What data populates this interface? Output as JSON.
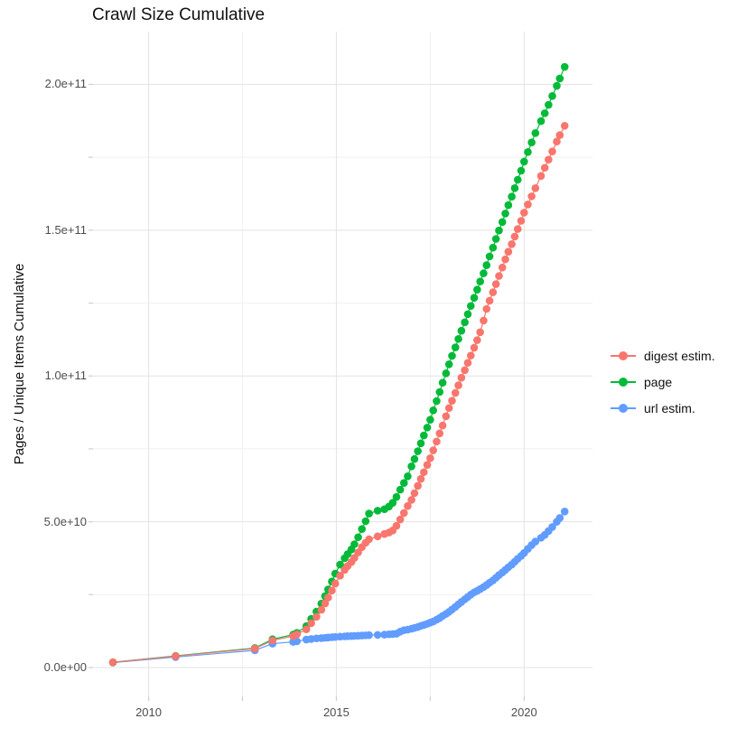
{
  "chart_data": {
    "type": "scatter",
    "title": "Crawl Size Cumulative",
    "ylabel": "Pages / Unique Items Cumulative",
    "xlabel": "",
    "unit": "pages / unique items (values given in billions, 1e9)",
    "xlim": [
      2008.52,
      2021.82
    ],
    "ylim_billions": [
      -9.9,
      218.1
    ],
    "x_ticks": {
      "major": [
        2010,
        2015,
        2020
      ],
      "minor": [
        2012.5,
        2017.5
      ],
      "labels": [
        "2010",
        "2015",
        "2020"
      ]
    },
    "y_ticks": {
      "major_billions": [
        0,
        50,
        100,
        150,
        200
      ],
      "minor_billions": [
        25,
        75,
        125,
        175
      ],
      "labels": [
        "0.0e+00",
        "5.0e+10",
        "1.0e+11",
        "1.5e+11",
        "2.0e+11"
      ]
    },
    "grid": {
      "major_color": "#e3e3e3",
      "minor_color": "#f1f1f1",
      "tick_color": "#cfcfcf"
    },
    "legend_position": "right",
    "x": [
      2009.05,
      2010.72,
      2012.83,
      2013.3,
      2013.85,
      2013.95,
      2014.2,
      2014.33,
      2014.47,
      2014.6,
      2014.7,
      2014.78,
      2014.88,
      2014.97,
      2015.1,
      2015.22,
      2015.3,
      2015.4,
      2015.48,
      2015.58,
      2015.68,
      2015.78,
      2015.87,
      2016.1,
      2016.28,
      2016.4,
      2016.5,
      2016.6,
      2016.7,
      2016.8,
      2016.9,
      2017.0,
      2017.08,
      2017.17,
      2017.25,
      2017.33,
      2017.42,
      2017.5,
      2017.58,
      2017.67,
      2017.75,
      2017.83,
      2017.92,
      2018.0,
      2018.08,
      2018.17,
      2018.25,
      2018.33,
      2018.42,
      2018.5,
      2018.58,
      2018.67,
      2018.75,
      2018.83,
      2018.92,
      2019.0,
      2019.08,
      2019.17,
      2019.25,
      2019.33,
      2019.42,
      2019.5,
      2019.58,
      2019.67,
      2019.75,
      2019.83,
      2019.92,
      2020.0,
      2020.1,
      2020.2,
      2020.3,
      2020.45,
      2020.55,
      2020.65,
      2020.75,
      2020.87,
      2020.95,
      2021.08
    ],
    "series": [
      {
        "name": "digest estim.",
        "color": "#F8766D",
        "values_billions": [
          1.8,
          3.9,
          6.5,
          9.3,
          10.8,
          11.4,
          13.1,
          15.2,
          17.4,
          19.8,
          22.0,
          24.0,
          26.4,
          28.8,
          31.5,
          33.5,
          34.8,
          36.2,
          37.6,
          39.5,
          41.3,
          42.8,
          44.0,
          45.0,
          45.8,
          46.3,
          47.0,
          48.6,
          50.8,
          53.0,
          55.4,
          57.5,
          59.8,
          62.3,
          64.7,
          67.0,
          69.5,
          71.8,
          74.5,
          77.5,
          80.3,
          83.0,
          86.2,
          89.0,
          91.5,
          94.2,
          96.8,
          99.4,
          102.0,
          104.5,
          107.0,
          109.7,
          112.3,
          115.0,
          119.0,
          123.0,
          125.8,
          128.7,
          131.5,
          134.3,
          137.2,
          140.0,
          142.6,
          145.2,
          147.8,
          150.4,
          153.2,
          156.0,
          158.8,
          161.6,
          164.4,
          168.6,
          171.4,
          174.2,
          177.0,
          180.4,
          182.6,
          185.8
        ]
      },
      {
        "name": "page",
        "color": "#00BA38",
        "values_billions": [
          1.8,
          4.0,
          6.7,
          9.7,
          11.3,
          11.9,
          14.2,
          16.7,
          19.2,
          21.9,
          24.5,
          26.8,
          29.5,
          32.2,
          35.3,
          37.5,
          38.9,
          40.5,
          42.3,
          44.7,
          47.5,
          50.2,
          52.8,
          53.8,
          54.3,
          55.2,
          56.5,
          58.5,
          61.0,
          63.3,
          65.6,
          69.0,
          71.5,
          74.2,
          76.9,
          79.6,
          82.3,
          85.0,
          88.2,
          91.4,
          94.5,
          97.7,
          100.9,
          104.0,
          106.9,
          109.8,
          112.7,
          115.5,
          118.4,
          121.2,
          124.0,
          126.8,
          129.6,
          132.4,
          135.2,
          138.0,
          141.0,
          144.0,
          147.0,
          149.9,
          152.8,
          155.7,
          158.6,
          161.5,
          164.4,
          167.3,
          170.4,
          173.5,
          176.8,
          180.1,
          183.3,
          187.4,
          190.1,
          193.0,
          196.0,
          199.5,
          202.0,
          206.0
        ]
      },
      {
        "name": "url estim.",
        "color": "#619CFF",
        "values_billions": [
          1.7,
          3.6,
          5.9,
          8.2,
          8.8,
          9.0,
          9.6,
          9.8,
          10.0,
          10.1,
          10.2,
          10.3,
          10.4,
          10.5,
          10.6,
          10.7,
          10.75,
          10.8,
          10.85,
          10.9,
          11.0,
          11.05,
          11.1,
          11.2,
          11.3,
          11.4,
          11.5,
          11.6,
          12.3,
          12.8,
          13.0,
          13.3,
          13.6,
          13.9,
          14.3,
          14.6,
          15.0,
          15.4,
          15.8,
          16.4,
          17.0,
          17.7,
          18.4,
          19.1,
          19.9,
          20.8,
          21.7,
          22.5,
          23.4,
          24.2,
          25.0,
          25.8,
          26.3,
          26.9,
          27.6,
          28.3,
          29.1,
          29.9,
          30.8,
          31.7,
          32.6,
          33.5,
          34.4,
          35.3,
          36.3,
          37.3,
          38.3,
          39.3,
          40.7,
          42.0,
          43.2,
          44.5,
          45.5,
          46.8,
          48.2,
          50.0,
          51.3,
          53.5
        ]
      }
    ],
    "draw_order": [
      2,
      1,
      0
    ],
    "point_radius": 4.3
  }
}
